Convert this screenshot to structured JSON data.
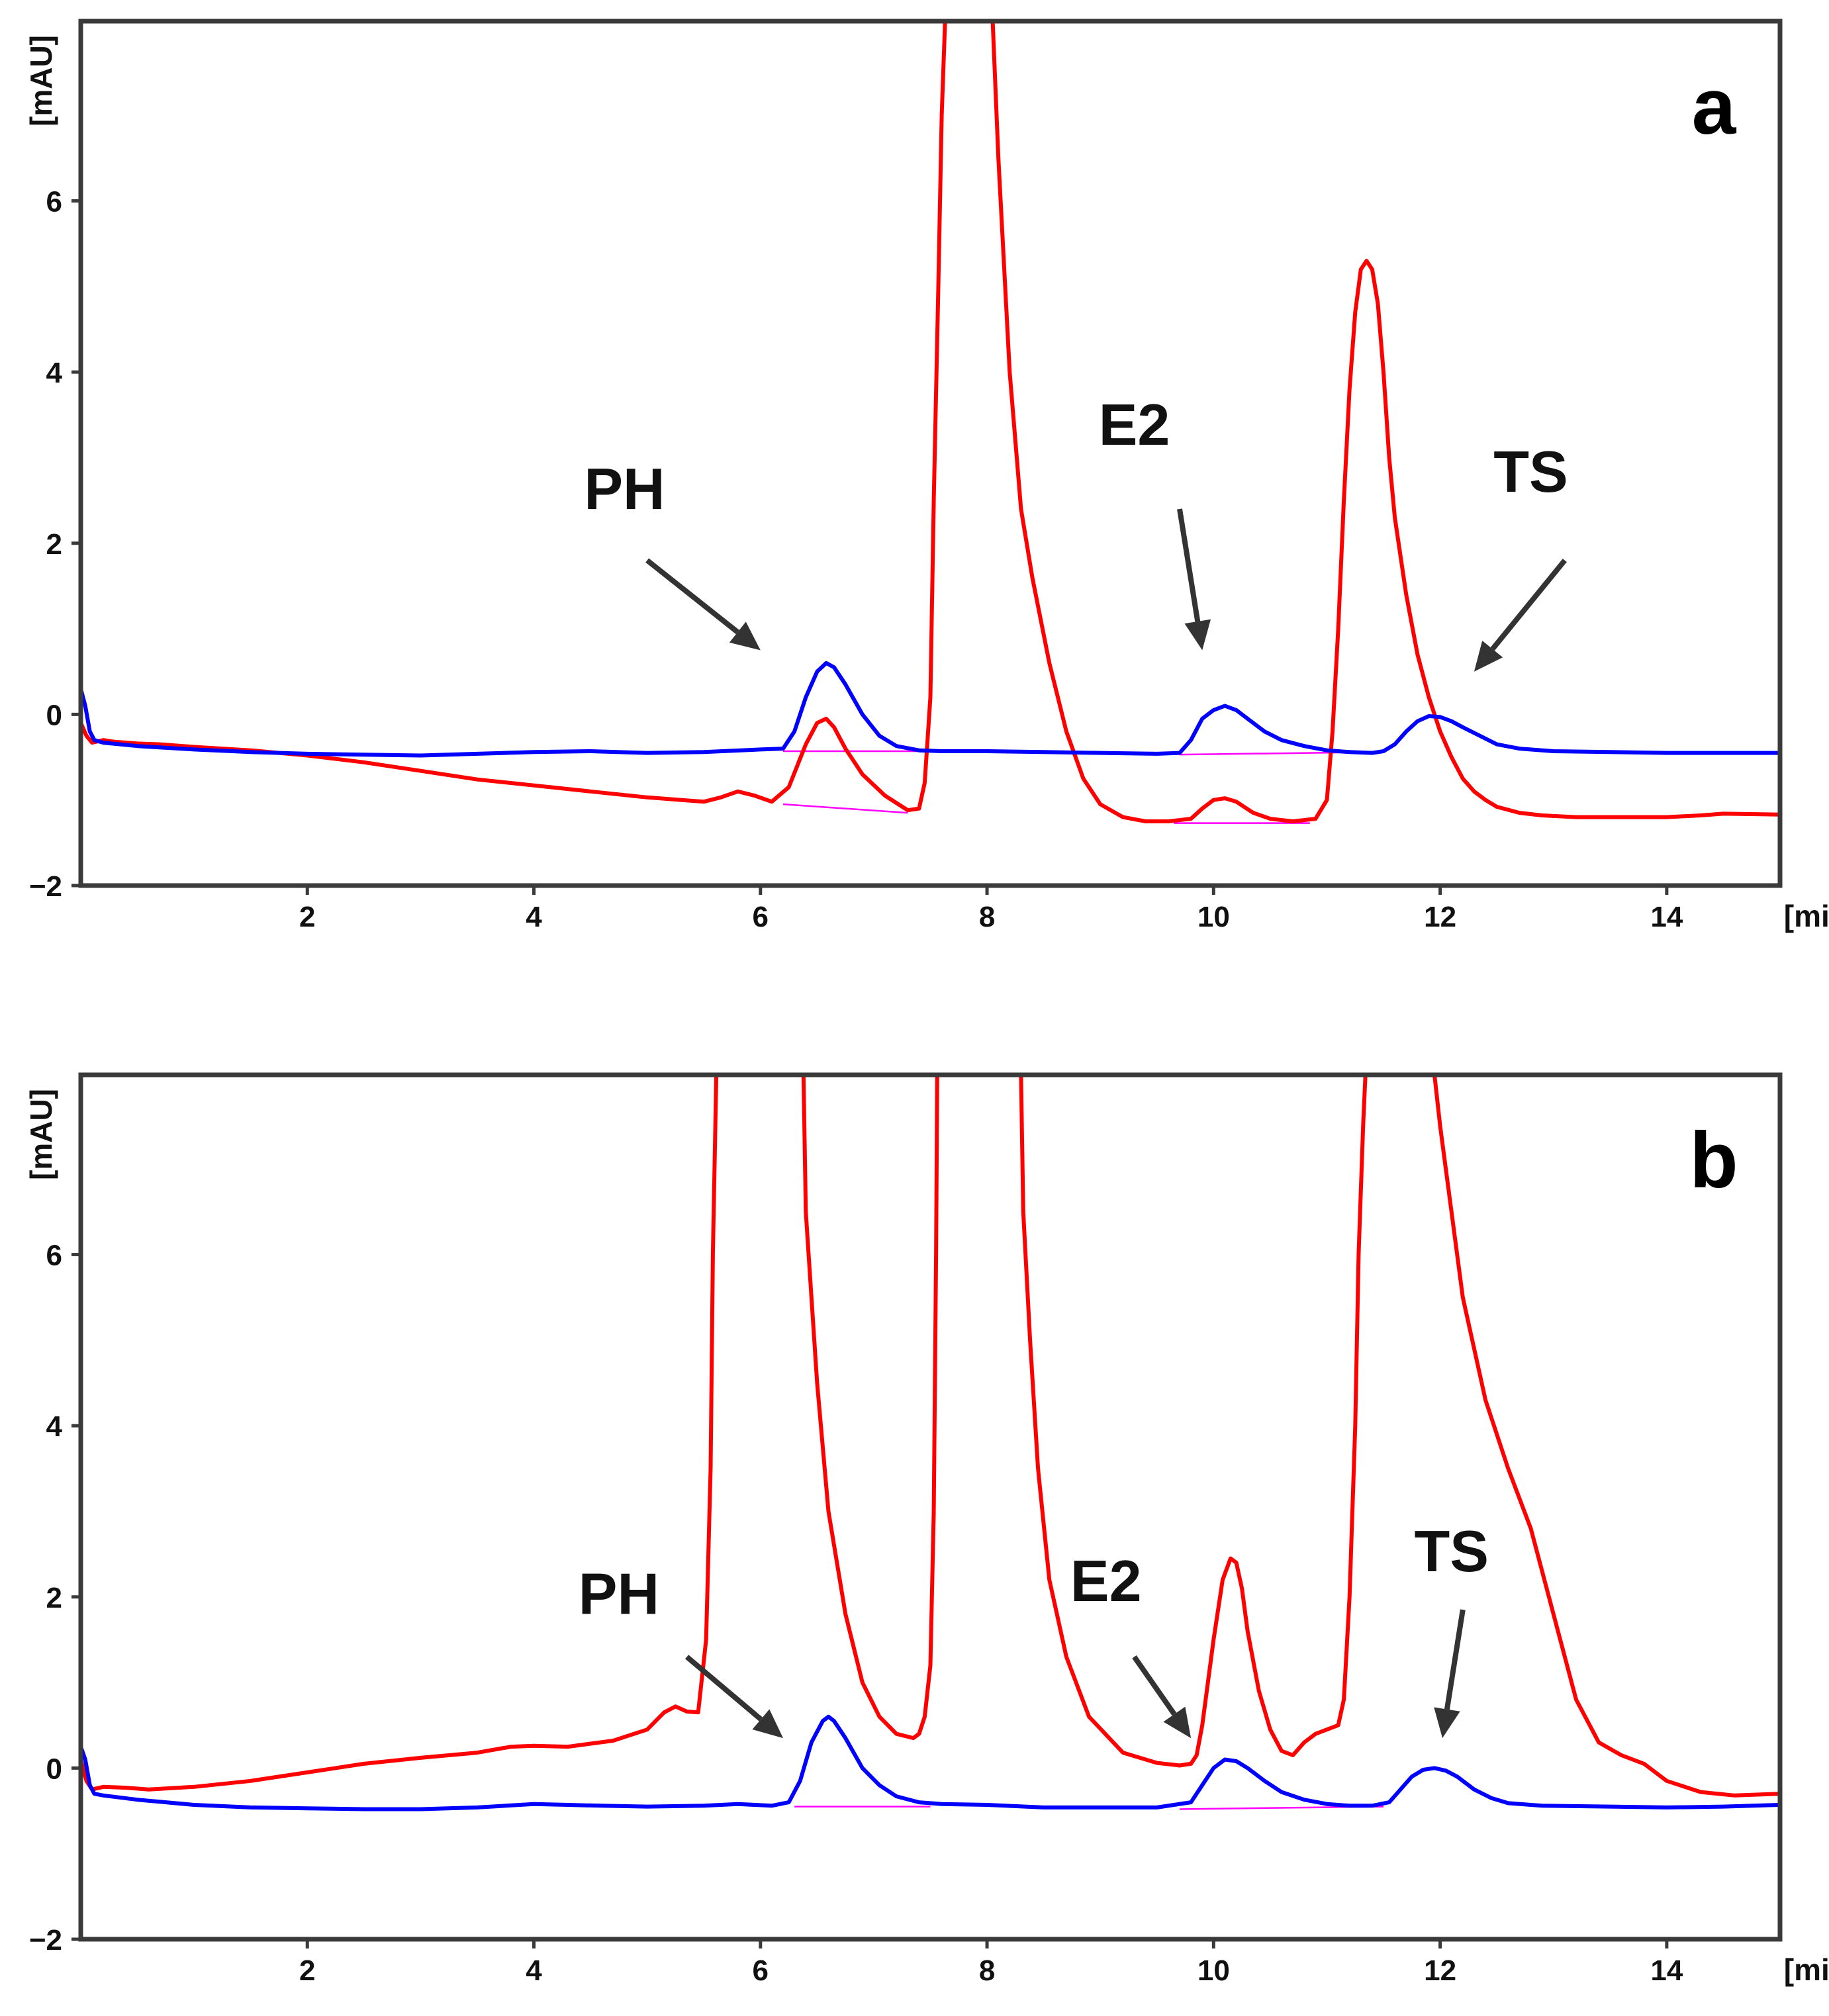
{
  "colors": {
    "sample": "#ff0000",
    "standard": "#0000ff",
    "integration": "#ff00ff",
    "arrow": "#333333",
    "frame": "#3a3a3a"
  },
  "chart_data": [
    {
      "type": "line",
      "panel_label": "a",
      "xlabel": "[min]",
      "ylabel": "[mAU]",
      "xlim": [
        0,
        15
      ],
      "ylim": [
        -2,
        8.1
      ],
      "xticks": [
        2,
        4,
        6,
        8,
        10,
        12,
        14
      ],
      "yticks": [
        -2,
        0,
        2,
        4,
        6
      ],
      "xtick_labels": [
        "2",
        "4",
        "6",
        "8",
        "10",
        "12",
        "14"
      ],
      "ytick_labels": [
        "−2",
        "0",
        "2",
        "4",
        "6"
      ],
      "annotations": [
        {
          "label": "PH",
          "text_at": [
            4.8,
            2.4
          ],
          "arrow_from": [
            5.0,
            1.8
          ],
          "arrow_to": [
            6.0,
            0.75
          ]
        },
        {
          "label": "E2",
          "text_at": [
            9.3,
            3.15
          ],
          "arrow_from": [
            9.7,
            2.4
          ],
          "arrow_to": [
            9.9,
            0.75
          ]
        },
        {
          "label": "TS",
          "text_at": [
            12.8,
            2.6
          ],
          "arrow_from": [
            13.1,
            1.8
          ],
          "arrow_to": [
            12.3,
            0.5
          ]
        }
      ],
      "series": [
        {
          "name": "red",
          "color": "#ff0000",
          "x": [
            0.0,
            0.05,
            0.1,
            0.2,
            0.3,
            0.5,
            0.7,
            1.0,
            1.5,
            2.0,
            2.5,
            3.0,
            3.5,
            4.0,
            4.5,
            5.0,
            5.5,
            5.65,
            5.8,
            5.95,
            6.1,
            6.25,
            6.4,
            6.5,
            6.58,
            6.65,
            6.75,
            6.9,
            7.1,
            7.3,
            7.4,
            7.45,
            7.5,
            7.53,
            7.57,
            7.6,
            7.63,
            7.65,
            7.66,
            8.02,
            8.05,
            8.1,
            8.2,
            8.3,
            8.4,
            8.55,
            8.7,
            8.85,
            9.0,
            9.2,
            9.4,
            9.6,
            9.8,
            9.9,
            10.0,
            10.1,
            10.2,
            10.35,
            10.5,
            10.7,
            10.9,
            11.0,
            11.05,
            11.1,
            11.15,
            11.2,
            11.25,
            11.3,
            11.35,
            11.4,
            11.45,
            11.5,
            11.55,
            11.6,
            11.7,
            11.8,
            11.9,
            12.0,
            12.1,
            12.2,
            12.3,
            12.4,
            12.5,
            12.7,
            12.9,
            13.2,
            13.5,
            14.0,
            14.3,
            14.5,
            15.0
          ],
          "y": [
            -0.1,
            -0.25,
            -0.33,
            -0.3,
            -0.32,
            -0.34,
            -0.35,
            -0.38,
            -0.42,
            -0.48,
            -0.56,
            -0.66,
            -0.76,
            -0.83,
            -0.9,
            -0.97,
            -1.02,
            -0.97,
            -0.9,
            -0.95,
            -1.02,
            -0.85,
            -0.35,
            -0.1,
            -0.05,
            -0.15,
            -0.4,
            -0.7,
            -0.95,
            -1.12,
            -1.1,
            -0.8,
            0.2,
            2.5,
            5.0,
            7.0,
            8.1,
            8.1,
            8.1,
            8.1,
            8.1,
            6.5,
            4.0,
            2.4,
            1.6,
            0.6,
            -0.2,
            -0.75,
            -1.05,
            -1.2,
            -1.25,
            -1.25,
            -1.22,
            -1.1,
            -1.0,
            -0.98,
            -1.02,
            -1.15,
            -1.22,
            -1.25,
            -1.22,
            -1.0,
            -0.2,
            1.0,
            2.5,
            3.8,
            4.7,
            5.2,
            5.3,
            5.2,
            4.8,
            4.0,
            3.0,
            2.3,
            1.4,
            0.7,
            0.2,
            -0.2,
            -0.5,
            -0.75,
            -0.9,
            -1.0,
            -1.08,
            -1.15,
            -1.18,
            -1.2,
            -1.2,
            -1.2,
            -1.18,
            -1.16,
            -1.17
          ]
        },
        {
          "name": "blue",
          "color": "#0000ff",
          "x": [
            0.0,
            0.04,
            0.08,
            0.12,
            0.2,
            0.5,
            1.0,
            1.5,
            2.0,
            2.5,
            3.0,
            3.5,
            4.0,
            4.5,
            5.0,
            5.5,
            6.0,
            6.2,
            6.3,
            6.4,
            6.5,
            6.58,
            6.65,
            6.75,
            6.9,
            7.05,
            7.2,
            7.4,
            7.6,
            8.0,
            8.5,
            9.0,
            9.5,
            9.7,
            9.8,
            9.9,
            10.0,
            10.1,
            10.2,
            10.3,
            10.45,
            10.6,
            10.8,
            11.0,
            11.2,
            11.4,
            11.5,
            11.6,
            11.7,
            11.8,
            11.9,
            12.0,
            12.1,
            12.2,
            12.35,
            12.5,
            12.7,
            13.0,
            13.5,
            14.0,
            14.5,
            15.0
          ],
          "y": [
            0.3,
            0.1,
            -0.2,
            -0.3,
            -0.33,
            -0.37,
            -0.41,
            -0.44,
            -0.46,
            -0.47,
            -0.48,
            -0.46,
            -0.44,
            -0.43,
            -0.45,
            -0.44,
            -0.41,
            -0.4,
            -0.2,
            0.2,
            0.5,
            0.6,
            0.55,
            0.35,
            0.0,
            -0.25,
            -0.37,
            -0.42,
            -0.43,
            -0.43,
            -0.44,
            -0.45,
            -0.46,
            -0.45,
            -0.3,
            -0.05,
            0.05,
            0.1,
            0.05,
            -0.05,
            -0.2,
            -0.3,
            -0.37,
            -0.42,
            -0.44,
            -0.45,
            -0.43,
            -0.35,
            -0.2,
            -0.08,
            -0.02,
            -0.03,
            -0.08,
            -0.15,
            -0.25,
            -0.35,
            -0.4,
            -0.43,
            -0.44,
            -0.45,
            -0.45,
            -0.45
          ]
        }
      ],
      "baselines": [
        {
          "x": [
            6.2,
            7.3
          ],
          "y": [
            -1.05,
            -1.15
          ]
        },
        {
          "x": [
            6.2,
            7.5
          ],
          "y": [
            -0.43,
            -0.43
          ]
        },
        {
          "x": [
            9.65,
            10.85
          ],
          "y": [
            -1.27,
            -1.27
          ]
        },
        {
          "x": [
            9.7,
            11.45
          ],
          "y": [
            -0.47,
            -0.44
          ]
        }
      ]
    },
    {
      "type": "line",
      "panel_label": "b",
      "xlabel": "[min]",
      "ylabel": "[mAU]",
      "xlim": [
        0,
        15
      ],
      "ylim": [
        -2,
        8.1
      ],
      "xticks": [
        2,
        4,
        6,
        8,
        10,
        12,
        14
      ],
      "yticks": [
        -2,
        0,
        2,
        4,
        6
      ],
      "xtick_labels": [
        "2",
        "4",
        "6",
        "8",
        "10",
        "12",
        "14"
      ],
      "ytick_labels": [
        "−2",
        "0",
        "2",
        "4",
        "6"
      ],
      "annotations": [
        {
          "label": "PH",
          "text_at": [
            4.75,
            1.8
          ],
          "arrow_from": [
            5.35,
            1.3
          ],
          "arrow_to": [
            6.2,
            0.35
          ]
        },
        {
          "label": "E2",
          "text_at": [
            9.05,
            1.95
          ],
          "arrow_from": [
            9.3,
            1.3
          ],
          "arrow_to": [
            9.8,
            0.35
          ]
        },
        {
          "label": "TS",
          "text_at": [
            12.1,
            2.3
          ],
          "arrow_from": [
            12.2,
            1.85
          ],
          "arrow_to": [
            12.02,
            0.35
          ]
        }
      ],
      "series": [
        {
          "name": "red",
          "color": "#ff0000",
          "x": [
            0.0,
            0.05,
            0.1,
            0.2,
            0.4,
            0.6,
            1.0,
            1.5,
            2.0,
            2.5,
            3.0,
            3.5,
            3.8,
            4.0,
            4.3,
            4.7,
            5.0,
            5.15,
            5.25,
            5.35,
            5.45,
            5.52,
            5.56,
            5.58,
            5.61,
            5.62,
            6.38,
            6.4,
            6.45,
            6.5,
            6.6,
            6.75,
            6.9,
            7.05,
            7.2,
            7.35,
            7.4,
            7.45,
            7.5,
            7.53,
            7.55,
            7.56,
            8.3,
            8.32,
            8.38,
            8.45,
            8.55,
            8.7,
            8.9,
            9.2,
            9.5,
            9.7,
            9.8,
            9.85,
            9.9,
            10.0,
            10.08,
            10.15,
            10.2,
            10.25,
            10.3,
            10.4,
            10.5,
            10.6,
            10.7,
            10.8,
            10.9,
            11.0,
            11.1,
            11.15,
            11.2,
            11.25,
            11.28,
            11.32,
            11.34,
            11.35,
            11.95,
            12.0,
            12.1,
            12.2,
            12.4,
            12.6,
            12.8,
            13.0,
            13.2,
            13.4,
            13.6,
            13.8,
            14.0,
            14.3,
            14.6,
            15.0
          ],
          "y": [
            0.1,
            -0.15,
            -0.25,
            -0.22,
            -0.23,
            -0.25,
            -0.22,
            -0.15,
            -0.05,
            0.05,
            0.12,
            0.18,
            0.25,
            0.26,
            0.25,
            0.32,
            0.45,
            0.65,
            0.72,
            0.66,
            0.65,
            1.5,
            3.5,
            6.0,
            8.1,
            8.1,
            8.1,
            6.5,
            5.5,
            4.5,
            3.0,
            1.8,
            1.0,
            0.6,
            0.4,
            0.35,
            0.4,
            0.6,
            1.2,
            3.0,
            6.0,
            8.1,
            8.1,
            6.5,
            5.0,
            3.5,
            2.2,
            1.3,
            0.6,
            0.18,
            0.06,
            0.03,
            0.05,
            0.15,
            0.5,
            1.5,
            2.2,
            2.45,
            2.4,
            2.1,
            1.6,
            0.9,
            0.45,
            0.2,
            0.15,
            0.3,
            0.4,
            0.45,
            0.5,
            0.8,
            2.0,
            4.0,
            6.0,
            7.5,
            8.1,
            8.1,
            8.1,
            7.5,
            6.5,
            5.5,
            4.3,
            3.5,
            2.8,
            1.8,
            0.8,
            0.3,
            0.15,
            0.05,
            -0.15,
            -0.28,
            -0.32,
            -0.3
          ]
        },
        {
          "name": "blue",
          "color": "#0000ff",
          "x": [
            0.0,
            0.04,
            0.08,
            0.12,
            0.2,
            0.5,
            1.0,
            1.5,
            2.0,
            2.5,
            3.0,
            3.5,
            4.0,
            4.3,
            4.6,
            5.0,
            5.5,
            5.8,
            6.1,
            6.25,
            6.35,
            6.45,
            6.55,
            6.6,
            6.65,
            6.75,
            6.9,
            7.05,
            7.2,
            7.4,
            7.6,
            8.0,
            8.5,
            9.0,
            9.5,
            9.8,
            9.9,
            10.0,
            10.1,
            10.2,
            10.3,
            10.45,
            10.6,
            10.8,
            11.0,
            11.2,
            11.4,
            11.55,
            11.65,
            11.75,
            11.85,
            11.95,
            12.05,
            12.15,
            12.3,
            12.45,
            12.6,
            12.9,
            13.5,
            14.0,
            14.5,
            15.0
          ],
          "y": [
            0.25,
            0.1,
            -0.2,
            -0.3,
            -0.32,
            -0.37,
            -0.43,
            -0.46,
            -0.47,
            -0.48,
            -0.48,
            -0.46,
            -0.42,
            -0.43,
            -0.44,
            -0.45,
            -0.44,
            -0.42,
            -0.44,
            -0.4,
            -0.15,
            0.3,
            0.55,
            0.6,
            0.55,
            0.35,
            0.0,
            -0.2,
            -0.33,
            -0.4,
            -0.42,
            -0.43,
            -0.46,
            -0.46,
            -0.46,
            -0.4,
            -0.2,
            0.0,
            0.1,
            0.08,
            0.0,
            -0.15,
            -0.28,
            -0.37,
            -0.42,
            -0.44,
            -0.44,
            -0.4,
            -0.25,
            -0.1,
            -0.02,
            0.0,
            -0.03,
            -0.1,
            -0.25,
            -0.35,
            -0.41,
            -0.44,
            -0.45,
            -0.46,
            -0.45,
            -0.43
          ]
        }
      ],
      "baselines": [
        {
          "x": [
            6.3,
            7.5
          ],
          "y": [
            -0.45,
            -0.45
          ]
        },
        {
          "x": [
            9.7,
            11.5
          ],
          "y": [
            -0.48,
            -0.45
          ]
        }
      ]
    }
  ]
}
